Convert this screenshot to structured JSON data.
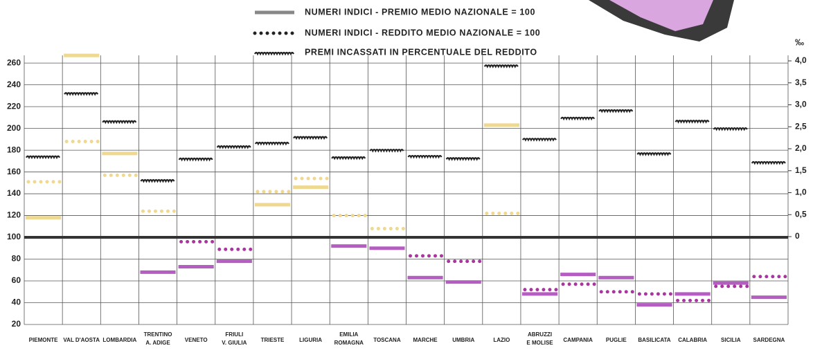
{
  "chart_data": {
    "type": "step-segments",
    "categories": [
      "PIEMONTE",
      "VAL D'AOSTA",
      "LOMBARDIA",
      [
        "TRENTINO",
        "A. ADIGE"
      ],
      "VENETO",
      [
        "FRIULI",
        "V. GIULIA"
      ],
      "TRIESTE",
      "LIGURIA",
      [
        "EMILIA",
        "ROMAGNA"
      ],
      "TOSCANA",
      "MARCHE",
      "UMBRIA",
      "LAZIO",
      [
        "ABRUZZI",
        "E MOLISE"
      ],
      "CAMPANIA",
      "PUGLIE",
      "BASILICATA",
      "CALABRIA",
      "SICILIA",
      "SARDEGNA"
    ],
    "series": [
      {
        "name": "NUMERI INDICI - PREMIO MEDIO NAZIONALE = 100",
        "style": "solid",
        "color_above": "#efd890",
        "color_below": "#b55ec2",
        "values": [
          118,
          267,
          177,
          68,
          73,
          78,
          130,
          146,
          92,
          90,
          63,
          59,
          203,
          48,
          66,
          63,
          38,
          48,
          58,
          45
        ]
      },
      {
        "name": "NUMERI INDICI - REDDITO MEDIO NAZIONALE = 100",
        "style": "dotted",
        "color_above": "#efd890",
        "color_below": "#a9369f",
        "values": [
          151,
          188,
          157,
          124,
          96,
          89,
          142,
          154,
          120,
          108,
          83,
          78,
          122,
          52,
          57,
          50,
          48,
          42,
          55,
          64
        ]
      },
      {
        "name": "PREMI INCASSATI IN PERCENTUALE DEL REDDITO",
        "style": "wavy",
        "color": "#222222",
        "axis": "y2",
        "values": [
          1.8,
          3.24,
          2.6,
          1.26,
          1.75,
          2.03,
          2.11,
          2.24,
          1.78,
          1.95,
          1.81,
          1.76,
          3.87,
          2.2,
          2.68,
          2.85,
          1.87,
          2.61,
          2.44,
          1.67
        ]
      }
    ],
    "baseline": 100,
    "ylim": [
      20,
      262
    ],
    "yticks": [
      20,
      40,
      60,
      80,
      100,
      120,
      140,
      160,
      180,
      200,
      220,
      240,
      260
    ],
    "y2label": "‰",
    "y2lim": [
      -2,
      4
    ],
    "y2ticks": [
      0,
      {
        "value": 0.5,
        "label": "0,5"
      },
      {
        "value": 1,
        "label": "1,0"
      },
      {
        "value": 1.5,
        "label": "1,5"
      },
      {
        "value": 2,
        "label": "2,0"
      },
      {
        "value": 2.5,
        "label": "2,5"
      },
      {
        "value": 3,
        "label": "3,0"
      },
      {
        "value": 3.5,
        "label": "3,5"
      },
      {
        "value": 4,
        "label": "4,0"
      }
    ],
    "grid": true
  }
}
